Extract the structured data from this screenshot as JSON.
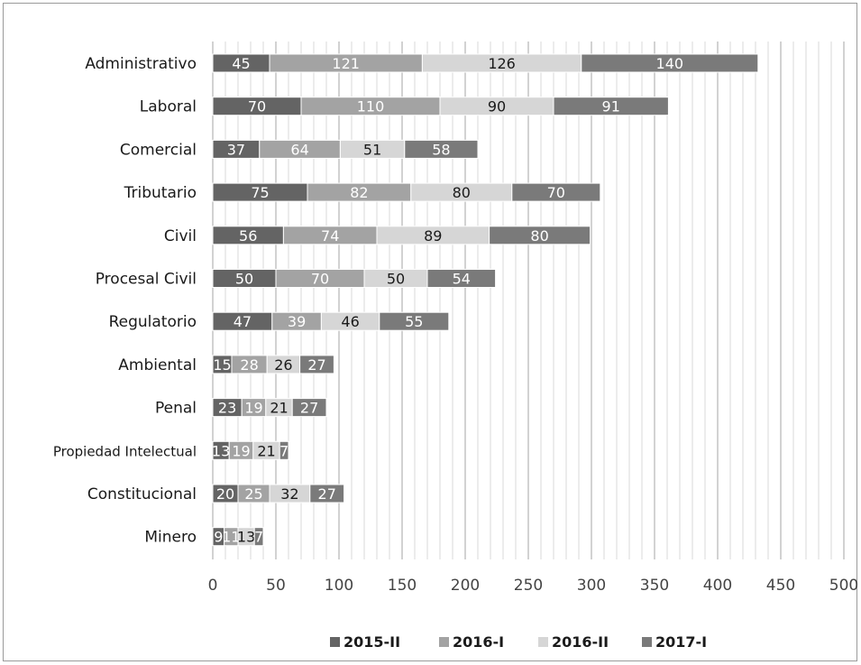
{
  "chart_data": {
    "type": "bar",
    "orientation": "horizontal",
    "stacked": true,
    "categories": [
      "Administrativo",
      "Laboral",
      "Comercial",
      "Tributario",
      "Civil",
      "Procesal Civil",
      "Regulatorio",
      "Ambiental",
      "Penal",
      "Propiedad Intelectual",
      "Constitucional",
      "Minero"
    ],
    "series": [
      {
        "name": "2015-II",
        "color": "#646464",
        "values": [
          45,
          70,
          37,
          75,
          56,
          50,
          47,
          15,
          23,
          13,
          20,
          9
        ]
      },
      {
        "name": "2016-I",
        "color": "#a3a3a3",
        "values": [
          121,
          110,
          64,
          82,
          74,
          70,
          39,
          28,
          19,
          19,
          25,
          11
        ]
      },
      {
        "name": "2016-II",
        "color": "#d6d6d6",
        "values": [
          126,
          90,
          51,
          80,
          89,
          50,
          46,
          26,
          21,
          21,
          32,
          13
        ]
      },
      {
        "name": "2017-I",
        "color": "#7a7a7a",
        "values": [
          140,
          91,
          58,
          70,
          80,
          54,
          55,
          27,
          27,
          7,
          27,
          7
        ]
      }
    ],
    "xlim": [
      0,
      500
    ],
    "xticks": [
      0,
      50,
      100,
      150,
      200,
      250,
      300,
      350,
      400,
      450,
      500
    ],
    "grid": "vertical",
    "legend": "bottom"
  }
}
